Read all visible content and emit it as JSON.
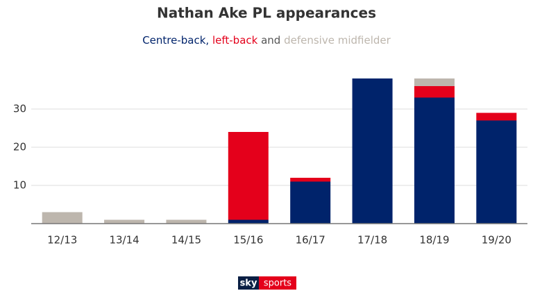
{
  "chart_data": {
    "type": "stacked_bar",
    "title": "Nathan Ake PL appearances",
    "subtitle_separators": [
      ", ",
      " and "
    ],
    "categories": [
      "12/13",
      "13/14",
      "14/15",
      "15/16",
      "16/17",
      "17/18",
      "18/19",
      "19/20"
    ],
    "series": [
      {
        "name": "Centre-back",
        "color": "#00236b",
        "values": [
          0,
          0,
          0,
          1,
          11,
          38,
          33,
          27
        ]
      },
      {
        "name": "left-back",
        "color": "#e4001b",
        "values": [
          0,
          0,
          0,
          23,
          1,
          0,
          3,
          2
        ]
      },
      {
        "name": "defensive midfielder",
        "color": "#bdb6ad",
        "values": [
          3,
          1,
          1,
          0,
          0,
          0,
          2,
          0
        ]
      }
    ],
    "ylim": [
      0,
      40
    ],
    "yticks": [
      10,
      20,
      30
    ],
    "grid": true,
    "logo": [
      "sky",
      "sports"
    ]
  }
}
